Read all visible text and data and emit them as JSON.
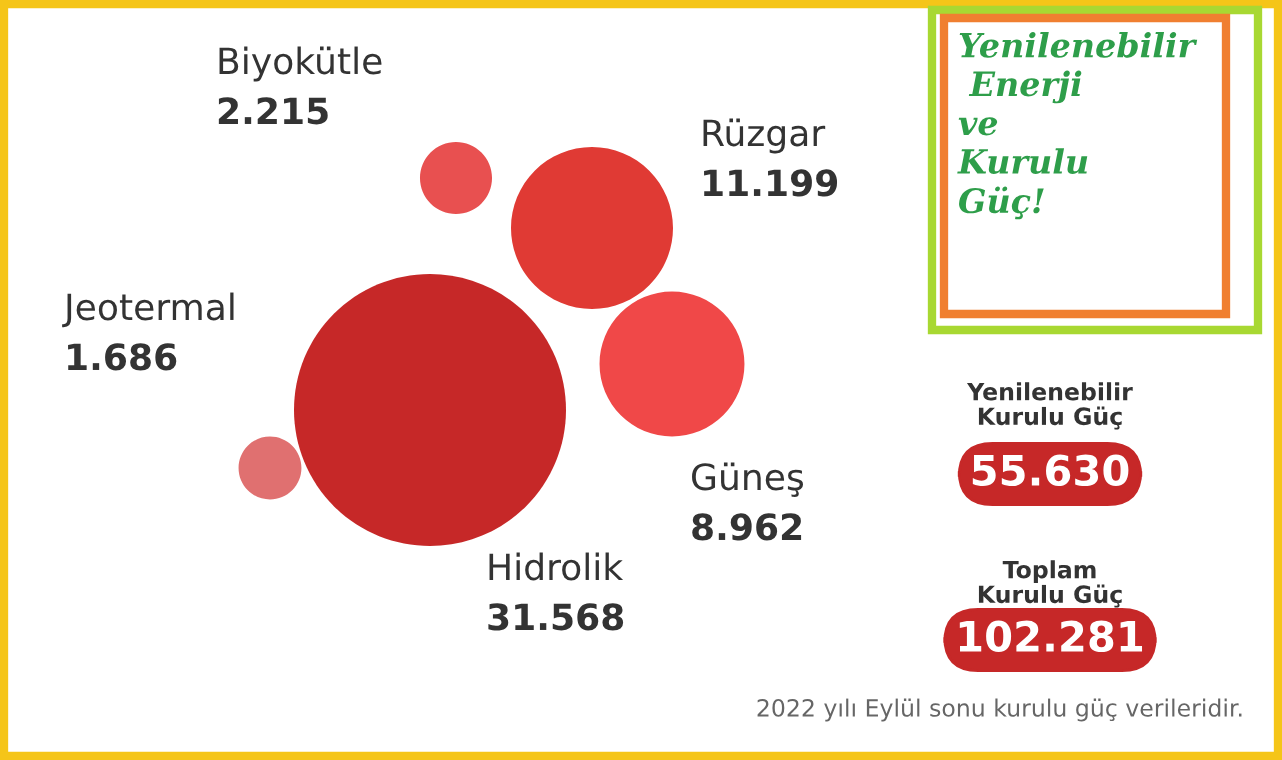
{
  "chart_data": {
    "type": "other",
    "title": "Yenilenebilir\n Enerji\nve\nKurulu\nGüç!",
    "categories": [
      "Hidrolik",
      "Rüzgar",
      "Güneş",
      "Biyokütle",
      "Jeotermal"
    ],
    "values": [
      31568,
      11199,
      8962,
      2215,
      1686
    ],
    "value_labels": [
      "31.568",
      "11.199",
      "8.962",
      "2.215",
      "1.686"
    ],
    "colors": [
      "#c62828",
      "#e03a34",
      "#f04848",
      "#e85050",
      "#e07070"
    ],
    "annotations": [
      "Yenilenebilir\nKurulu Güç",
      "55.630",
      "Toplam\nKurulu Güç",
      "102.281",
      "2022 yılı Eylül sonu kurulu güç verileridir."
    ]
  }
}
